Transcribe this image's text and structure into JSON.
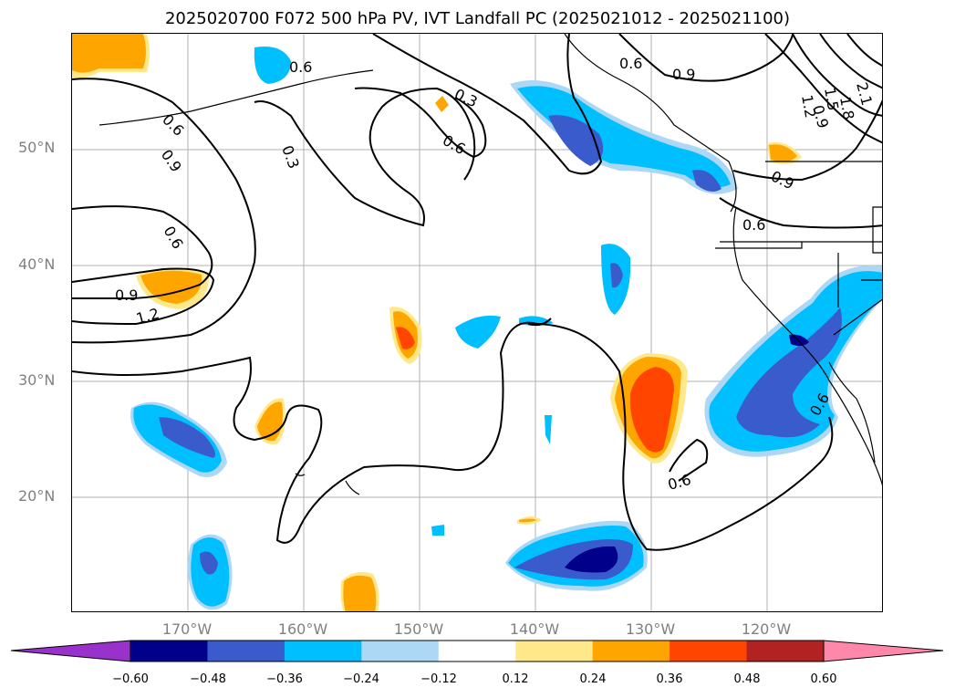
{
  "title": "2025020700 F072 500 hPa PV, IVT Landfall PC (2025021012 - 2025021100)",
  "lat_labels": [
    "50°N",
    "40°N",
    "30°N",
    "20°N"
  ],
  "lon_labels": [
    "170°W",
    "160°W",
    "150°W",
    "140°W",
    "130°W",
    "120°W"
  ],
  "contour_labels": [
    "0.6",
    "0.3",
    "0.6",
    "0.3",
    "0.6",
    "0.9",
    "0.6",
    "0.9",
    "0.6",
    "0.9",
    "1.2",
    "0.9",
    "0.6",
    "0.9",
    "1.2",
    "1.5",
    "1.8",
    "2.1",
    "0.6",
    "0.6"
  ],
  "colorbar": {
    "ticks": [
      "−0.60",
      "−0.48",
      "−0.36",
      "−0.24",
      "−0.12",
      "0.12",
      "0.24",
      "0.36",
      "0.48",
      "0.60"
    ],
    "colors": [
      "#9932cc",
      "#00008b",
      "#3a5bcc",
      "#00bfff",
      "#add8f5",
      "#ffffff",
      "#ffe88a",
      "#ffa500",
      "#ff4500",
      "#b22222",
      "#ff88aa"
    ]
  },
  "map_extent": {
    "lon": [
      -180,
      -110
    ],
    "lat": [
      10,
      60
    ]
  }
}
